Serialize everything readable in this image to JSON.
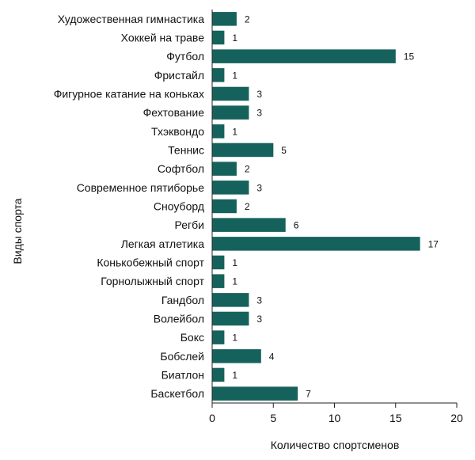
{
  "chart_data": {
    "type": "bar",
    "orientation": "horizontal",
    "bar_color": "#15625c",
    "xlabel": "Количество спортсменов",
    "ylabel": "Виды спорта",
    "xlim": [
      0,
      20
    ],
    "xticks": [
      0,
      5,
      10,
      15,
      20
    ],
    "grid": false,
    "categories": [
      "Художественная гимнастика",
      "Хоккей на траве",
      "Футбол",
      "Фристайл",
      "Фигурное катание на коньках",
      "Фехтование",
      "Тхэквондо",
      "Теннис",
      "Софтбол",
      "Современное пятиборье",
      "Сноуборд",
      "Регби",
      "Легкая атлетика",
      "Конькобежный спорт",
      "Горнолыжный спорт",
      "Гандбол",
      "Волейбол",
      "Бокс",
      "Бобслей",
      "Биатлон",
      "Баскетбол"
    ],
    "values": [
      2,
      1,
      15,
      1,
      3,
      3,
      1,
      5,
      2,
      3,
      2,
      6,
      17,
      1,
      1,
      3,
      3,
      1,
      4,
      1,
      7
    ]
  }
}
